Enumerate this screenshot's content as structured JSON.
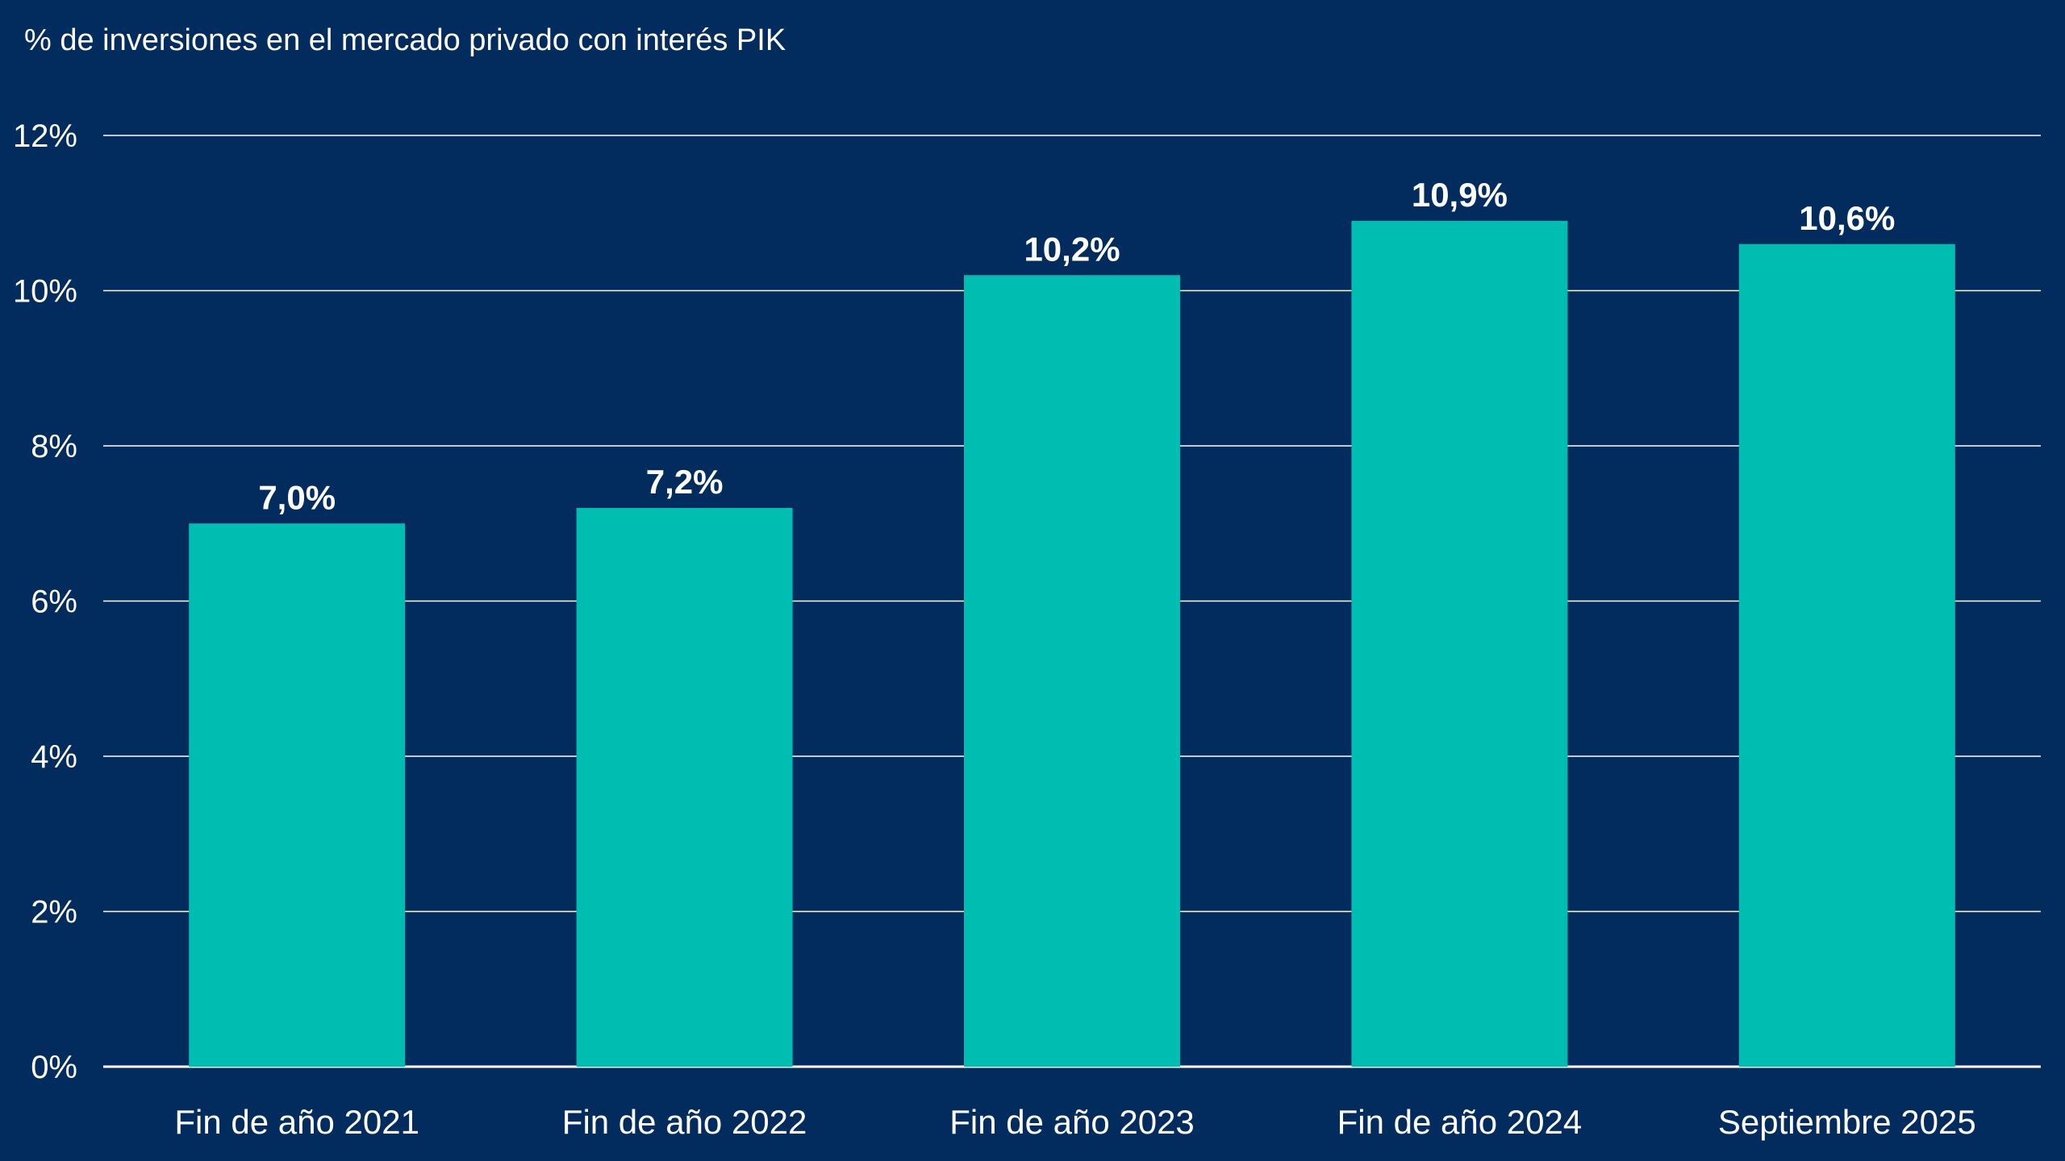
{
  "colors": {
    "background": "#022b5e",
    "bar": "#00bdb2",
    "grid": "#ffffff",
    "text": "#ffffff"
  },
  "chart_data": {
    "type": "bar",
    "title": "",
    "xlabel": "",
    "ylabel": "% de inversiones en el mercado privado con interés PIK",
    "categories": [
      "Fin de año 2021",
      "Fin de año 2022",
      "Fin de año 2023",
      "Fin de año 2024",
      "Septiembre 2025"
    ],
    "values": [
      7.0,
      7.2,
      10.2,
      10.9,
      10.6
    ],
    "value_labels": [
      "7,0%",
      "7,2%",
      "10,2%",
      "10,9%",
      "10,6%"
    ],
    "ylim": [
      0,
      12
    ],
    "yticks": [
      0,
      2,
      4,
      6,
      8,
      10,
      12
    ],
    "ytick_labels": [
      "0%",
      "2%",
      "4%",
      "6%",
      "8%",
      "10%",
      "12%"
    ],
    "grid": true,
    "legend": "none"
  }
}
